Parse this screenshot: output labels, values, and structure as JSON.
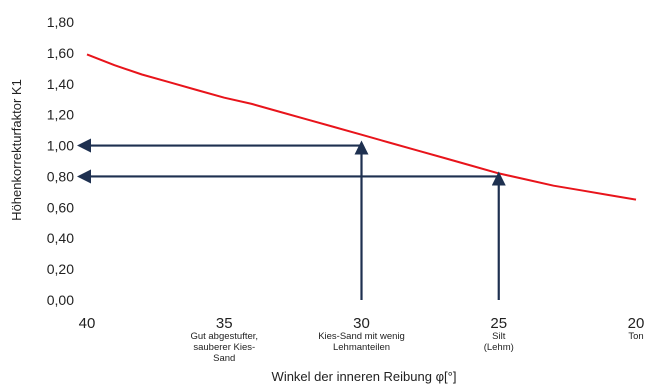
{
  "chart_data": {
    "type": "line",
    "xlabel": "Winkel der inneren Reibung φ[°]",
    "ylabel": "Höhenkorrekturfaktor K1",
    "xlim": [
      40,
      20
    ],
    "x_reversed": true,
    "ylim": [
      0,
      1.8
    ],
    "x_ticks": [
      40,
      35,
      30,
      25,
      20
    ],
    "x_tick_labels": [
      "40",
      "35",
      "30",
      "25",
      "20"
    ],
    "y_ticks": [
      0,
      0.2,
      0.4,
      0.6,
      0.8,
      1.0,
      1.2,
      1.4,
      1.6,
      1.8
    ],
    "y_tick_labels": [
      "0,00",
      "0,20",
      "0,40",
      "0,60",
      "0,80",
      "1,00",
      "1,20",
      "1,40",
      "1,60",
      "1,80"
    ],
    "grid": false,
    "series": [
      {
        "color": "#e8141b",
        "x": [
          40,
          39,
          38,
          37,
          36,
          35,
          34,
          33,
          32,
          31,
          30,
          29,
          28,
          27,
          26,
          25,
          24,
          23,
          22,
          21,
          20
        ],
        "y": [
          1.59,
          1.52,
          1.46,
          1.41,
          1.36,
          1.31,
          1.27,
          1.22,
          1.17,
          1.12,
          1.07,
          1.02,
          0.97,
          0.92,
          0.87,
          0.82,
          0.78,
          0.74,
          0.71,
          0.68,
          0.65
        ]
      }
    ],
    "reference_arrows": [
      {
        "x": 30,
        "y": 1.0,
        "color": "#1e3050"
      },
      {
        "x": 25,
        "y": 0.8,
        "color": "#1e3050"
      }
    ],
    "soil_labels": [
      {
        "x": 35,
        "lines": [
          "Gut abgestufter,",
          "sauberer Kies-",
          "Sand"
        ]
      },
      {
        "x": 30,
        "lines": [
          "Kies-Sand mit wenig",
          "Lehmanteilen"
        ]
      },
      {
        "x": 25,
        "lines": [
          "Silt",
          "(Lehm)"
        ]
      },
      {
        "x": 20,
        "lines": [
          "Ton"
        ]
      }
    ]
  }
}
